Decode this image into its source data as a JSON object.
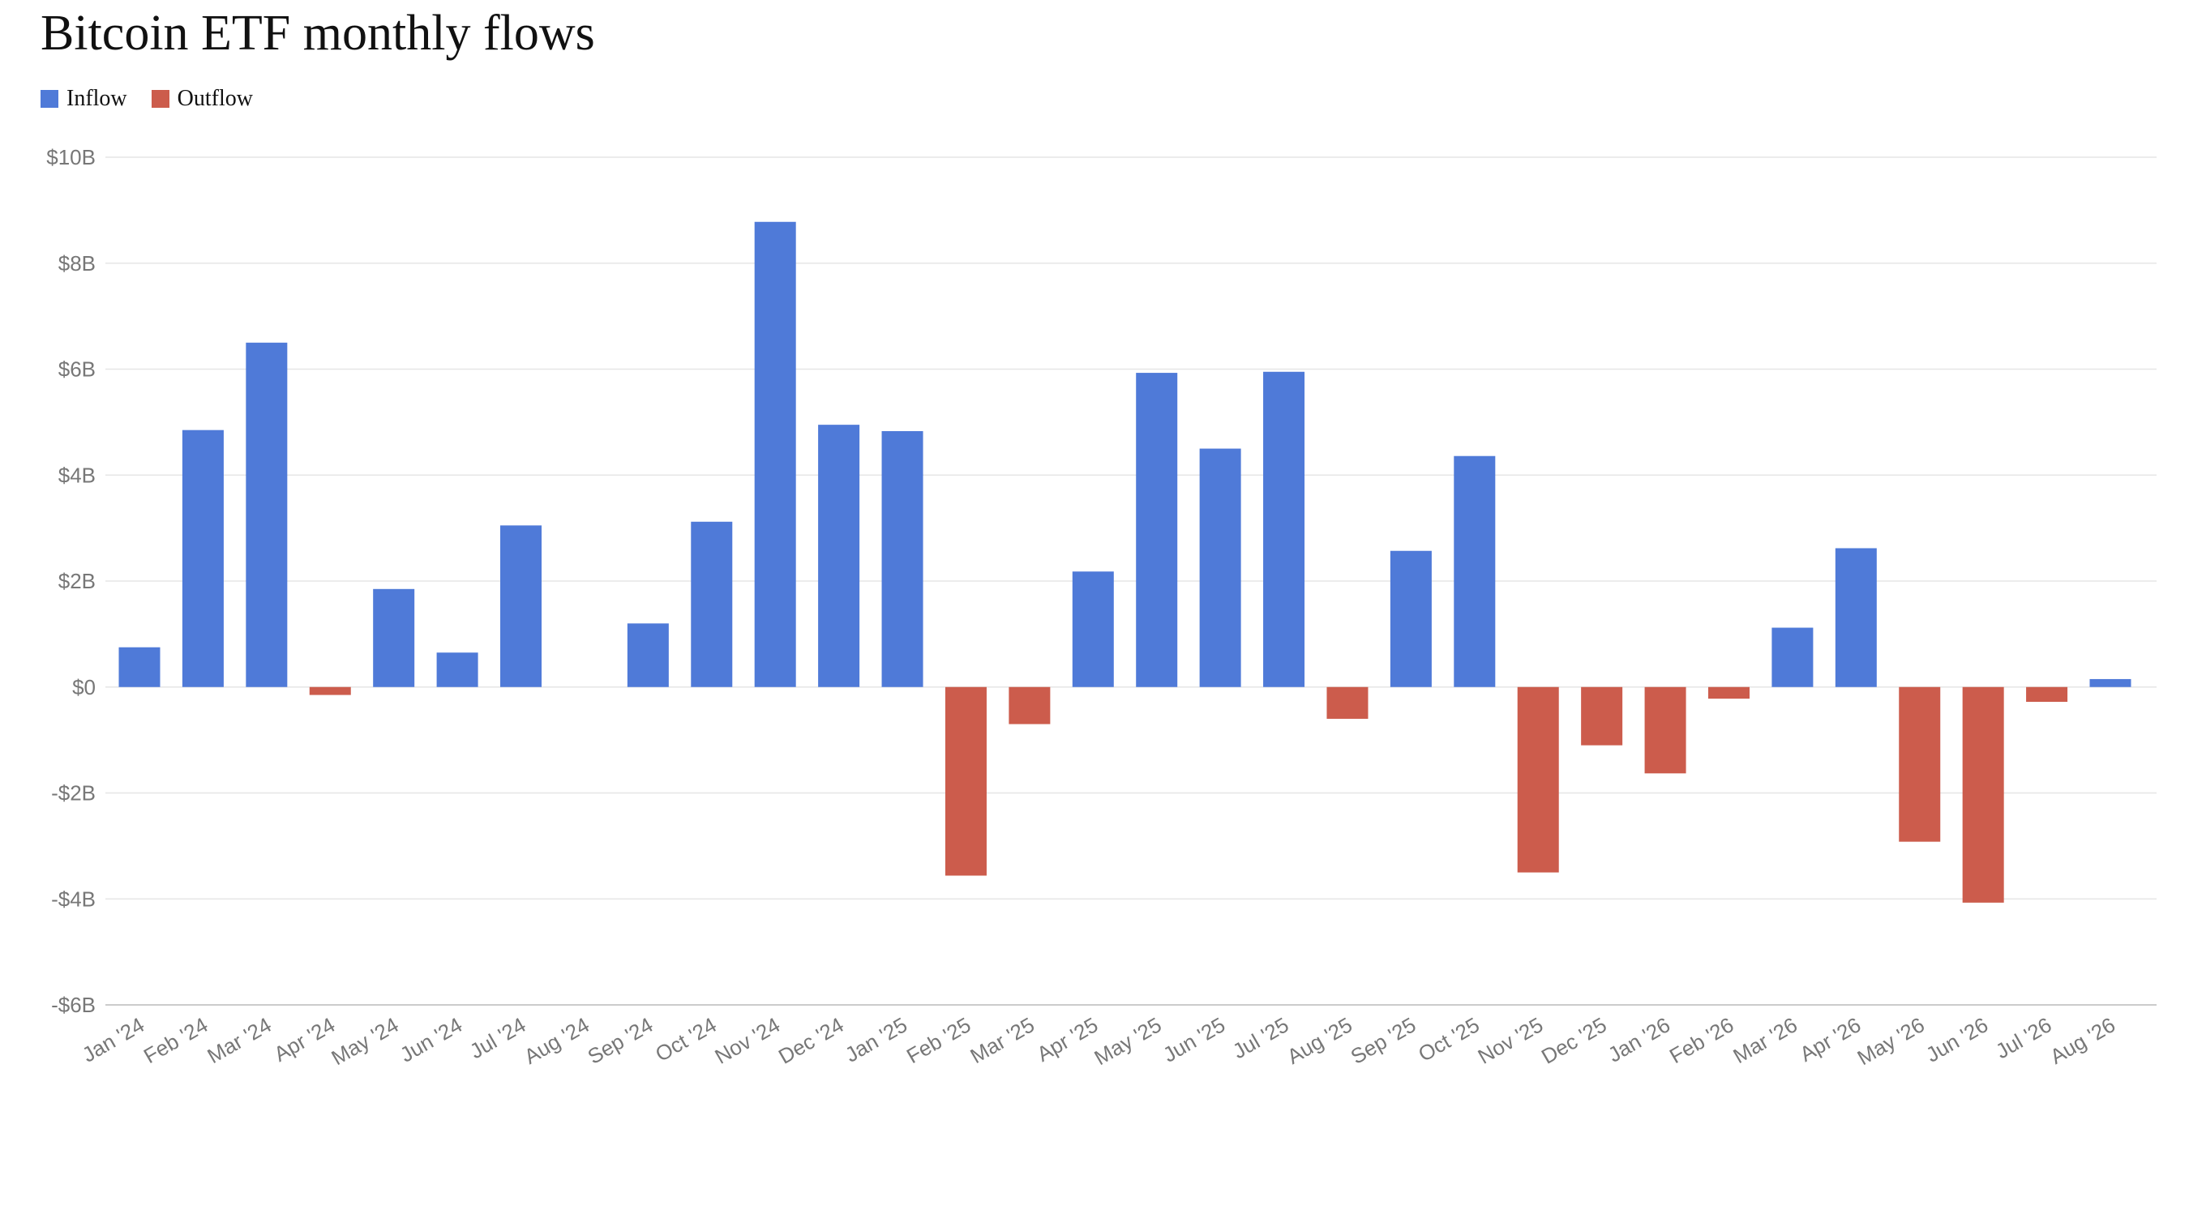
{
  "chart_data": {
    "type": "bar",
    "title": "Bitcoin ETF monthly flows",
    "legend": {
      "placement": "top-left",
      "items": [
        {
          "label": "Inflow",
          "color": "#4f7ad8"
        },
        {
          "label": "Outflow",
          "color": "#cc5c4c"
        }
      ]
    },
    "colors": {
      "positive": "#4f7ad8",
      "negative": "#cc5c4c"
    },
    "grid": true,
    "ylim": [
      -6,
      10
    ],
    "ytick_values": [
      10,
      8,
      6,
      4,
      2,
      0,
      -2,
      -4,
      -6
    ],
    "ytick_labels": [
      "$10B",
      "$8B",
      "$6B",
      "$4B",
      "$2B",
      "$0",
      "-$2B",
      "-$4B",
      "-$6B"
    ],
    "xlabel": "",
    "ylabel": "",
    "categories": [
      "Jan '24",
      "Feb '24",
      "Mar '24",
      "Apr '24",
      "May '24",
      "Jun '24",
      "Jul '24",
      "Aug '24",
      "Sep '24",
      "Oct '24",
      "Nov '24",
      "Dec '24",
      "Jan '25",
      "Feb '25",
      "Mar '25",
      "Apr '25",
      "May '25",
      "Jun '25",
      "Jul '25",
      "Aug '25",
      "Sep '25",
      "Oct '25",
      "Nov '25",
      "Dec '25",
      "Jan '26",
      "Feb '26",
      "Mar '26",
      "Apr '26",
      "May '26",
      "Jun '26",
      "Jul '26",
      "Aug '26"
    ],
    "values": [
      0.75,
      4.85,
      6.5,
      -0.15,
      1.85,
      0.65,
      3.05,
      0.0,
      1.2,
      3.12,
      8.78,
      4.95,
      4.83,
      -3.56,
      -0.7,
      2.18,
      5.93,
      4.5,
      5.95,
      -0.6,
      2.57,
      4.36,
      -3.5,
      -1.1,
      -1.63,
      -0.22,
      1.12,
      2.62,
      -2.92,
      -4.07,
      -0.28,
      0.15
    ]
  }
}
